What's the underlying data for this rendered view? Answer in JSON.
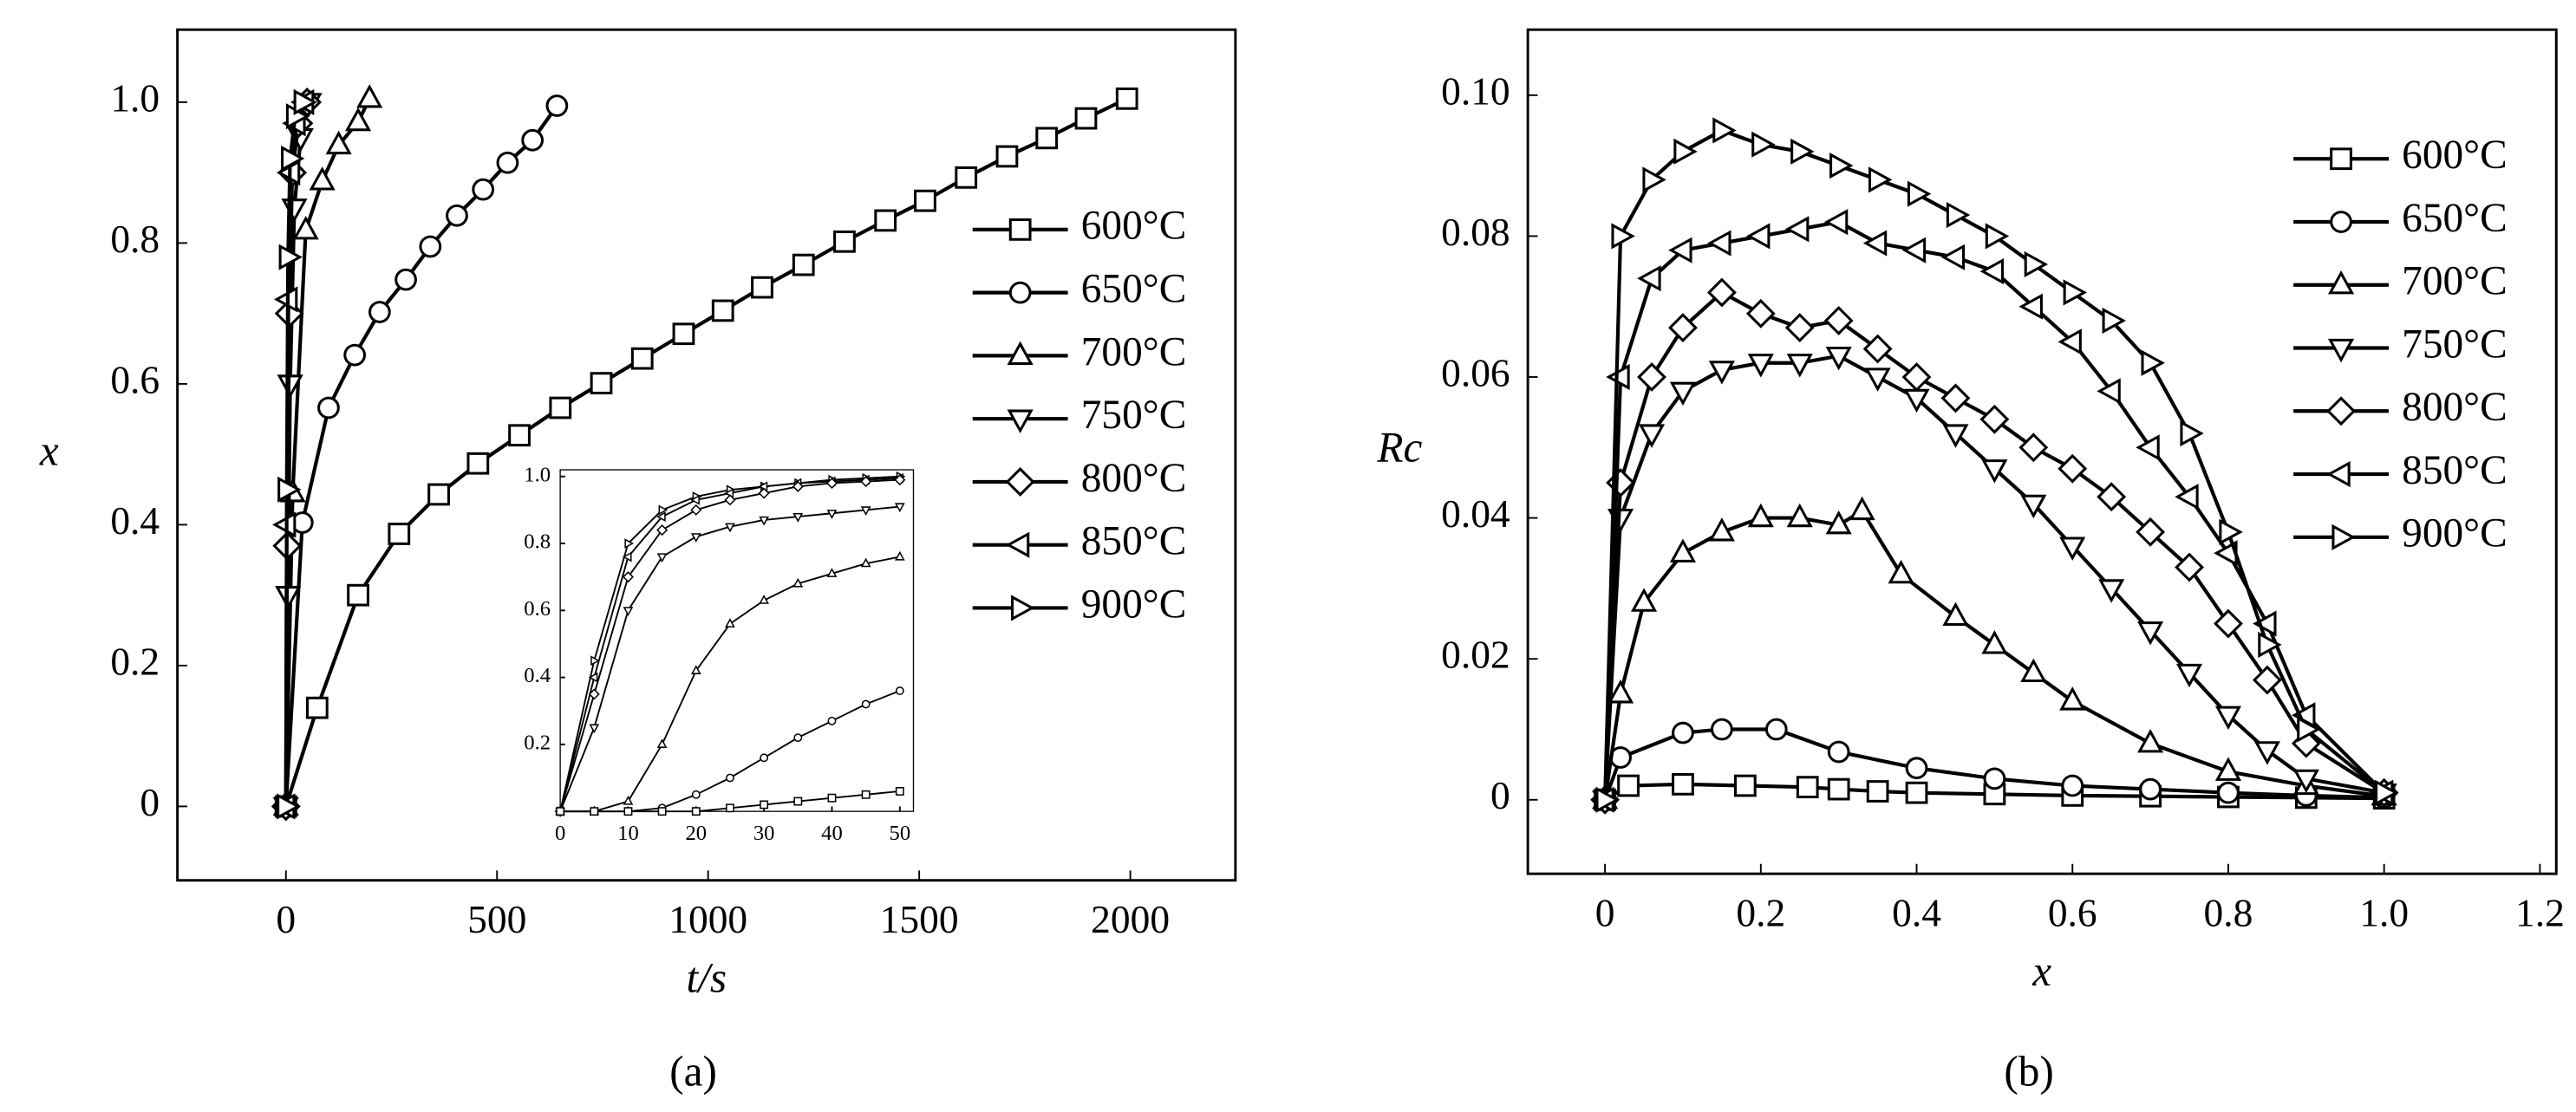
{
  "chart_data": [
    {
      "type": "line",
      "caption": "(a)",
      "xlabel": "t/s",
      "ylabel": "x",
      "color": "#000000",
      "legend": "center right",
      "xlim": [
        -257,
        2249
      ],
      "xticks": [
        0,
        500,
        1000,
        1500,
        2000
      ],
      "ylim": [
        -0.105,
        1.103
      ],
      "yticks": [
        0,
        0.2,
        0.4,
        0.6,
        0.8,
        {
          "value": 1,
          "label": "1.0"
        }
      ],
      "series": [
        {
          "name": "600°C",
          "marker": "square",
          "x": [
            0,
            74,
            171,
            268,
            362,
            455,
            553,
            650,
            747,
            844,
            942,
            1035,
            1128,
            1226,
            1323,
            1420,
            1514,
            1611,
            1708,
            1802,
            1895,
            1992
          ],
          "values": [
            0,
            0.14,
            0.3,
            0.387,
            0.443,
            0.487,
            0.527,
            0.566,
            0.601,
            0.636,
            0.671,
            0.704,
            0.737,
            0.769,
            0.802,
            0.832,
            0.86,
            0.893,
            0.923,
            0.949,
            0.977,
            1.005
          ]
        },
        {
          "name": "650°C",
          "marker": "circle",
          "x": [
            0,
            39,
            101,
            163,
            222,
            284,
            342,
            405,
            467,
            525,
            584,
            642
          ],
          "values": [
            0,
            0.403,
            0.566,
            0.641,
            0.702,
            0.748,
            0.795,
            0.839,
            0.876,
            0.914,
            0.946,
            0.995
          ]
        },
        {
          "name": "700°C",
          "marker": "triangle-up",
          "x": [
            0,
            16,
            47,
            86,
            125,
            171,
            198
          ],
          "values": [
            0,
            0.445,
            0.818,
            0.888,
            0.939,
            0.972,
            1.005
          ]
        },
        {
          "name": "750°C",
          "marker": "triangle-down",
          "x": [
            0,
            5,
            10,
            20,
            35,
            55
          ],
          "values": [
            0,
            0.3,
            0.6,
            0.85,
            0.95,
            1.0
          ]
        },
        {
          "name": "800°C",
          "marker": "diamond",
          "x": [
            0,
            3,
            8,
            15,
            30,
            50
          ],
          "values": [
            0,
            0.37,
            0.7,
            0.9,
            0.97,
            1.0
          ]
        },
        {
          "name": "850°C",
          "marker": "triangle-left",
          "x": [
            0,
            2,
            6,
            12,
            25,
            45
          ],
          "values": [
            0,
            0.4,
            0.72,
            0.9,
            0.97,
            1.0
          ]
        },
        {
          "name": "900°C",
          "marker": "triangle-right",
          "x": [
            0,
            2,
            5,
            10,
            22,
            40
          ],
          "values": [
            0,
            0.45,
            0.78,
            0.92,
            0.98,
            1.0
          ]
        }
      ]
    },
    {
      "type": "line",
      "color": "#000000",
      "xlim": [
        0,
        52
      ],
      "xticks": [
        0,
        10,
        20,
        30,
        40,
        50
      ],
      "ylim": [
        0,
        1.02
      ],
      "yticks": [
        0.2,
        0.4,
        0.6,
        0.8,
        {
          "value": 1,
          "label": "1.0"
        }
      ],
      "x": [
        0,
        5,
        10,
        15,
        20,
        25,
        30,
        35,
        40,
        45,
        50
      ],
      "series": [
        {
          "marker": "triangle-right",
          "values": [
            0,
            0.45,
            0.8,
            0.9,
            0.94,
            0.96,
            0.97,
            0.98,
            0.99,
            0.995,
            1.0
          ]
        },
        {
          "marker": "triangle-left",
          "values": [
            0,
            0.4,
            0.76,
            0.88,
            0.93,
            0.95,
            0.97,
            0.98,
            0.985,
            0.99,
            0.995
          ]
        },
        {
          "marker": "diamond",
          "values": [
            0,
            0.35,
            0.7,
            0.84,
            0.9,
            0.93,
            0.95,
            0.97,
            0.98,
            0.985,
            0.99
          ]
        },
        {
          "marker": "triangle-down",
          "values": [
            0,
            0.25,
            0.6,
            0.76,
            0.82,
            0.85,
            0.87,
            0.88,
            0.89,
            0.9,
            0.91
          ]
        },
        {
          "marker": "triangle-up",
          "values": [
            0,
            0,
            0.03,
            0.2,
            0.42,
            0.56,
            0.63,
            0.68,
            0.71,
            0.74,
            0.76
          ]
        },
        {
          "marker": "circle",
          "values": [
            0,
            0,
            0,
            0.01,
            0.05,
            0.1,
            0.16,
            0.22,
            0.27,
            0.32,
            0.36
          ]
        },
        {
          "marker": "square",
          "values": [
            0,
            0,
            0,
            0,
            0,
            0.01,
            0.02,
            0.03,
            0.04,
            0.05,
            0.06
          ]
        }
      ]
    },
    {
      "type": "line",
      "caption": "(b)",
      "xlabel": "x",
      "ylabel": "Rc",
      "color": "#000000",
      "legend": "upper right",
      "xlim": [
        -0.099,
        1.221
      ],
      "xticks": [
        0,
        0.2,
        0.4,
        0.6,
        0.8,
        {
          "value": 1,
          "label": "1.0"
        },
        1.2
      ],
      "ylim": [
        -0.0105,
        0.1093
      ],
      "yticks": [
        0,
        0.02,
        0.04,
        0.06,
        0.08,
        {
          "value": 0.1,
          "label": "0.10"
        }
      ],
      "series": [
        {
          "name": "600°C",
          "marker": "square",
          "x": [
            0,
            0.03,
            0.1,
            0.18,
            0.26,
            0.3,
            0.35,
            0.4,
            0.5,
            0.6,
            0.7,
            0.8,
            0.9,
            1.0
          ],
          "values": [
            0,
            0.002,
            0.0022,
            0.002,
            0.0018,
            0.0015,
            0.0012,
            0.001,
            0.0008,
            0.0006,
            0.0005,
            0.0004,
            0.0003,
            0.0002
          ]
        },
        {
          "name": "650°C",
          "marker": "circle",
          "x": [
            0,
            0.02,
            0.1,
            0.15,
            0.22,
            0.3,
            0.4,
            0.5,
            0.6,
            0.7,
            0.8,
            0.9,
            1.0
          ],
          "values": [
            0,
            0.006,
            0.0095,
            0.01,
            0.01,
            0.0068,
            0.0045,
            0.003,
            0.002,
            0.0015,
            0.001,
            0.0006,
            0.0003
          ]
        },
        {
          "name": "700°C",
          "marker": "triangle-up",
          "x": [
            0,
            0.02,
            0.05,
            0.1,
            0.15,
            0.2,
            0.25,
            0.3,
            0.33,
            0.38,
            0.45,
            0.5,
            0.55,
            0.6,
            0.7,
            0.8,
            0.9,
            1.0
          ],
          "values": [
            0,
            0.015,
            0.028,
            0.035,
            0.038,
            0.04,
            0.04,
            0.039,
            0.041,
            0.032,
            0.026,
            0.022,
            0.018,
            0.014,
            0.008,
            0.004,
            0.002,
            0.0005
          ]
        },
        {
          "name": "750°C",
          "marker": "triangle-down",
          "x": [
            0,
            0.02,
            0.06,
            0.1,
            0.15,
            0.2,
            0.25,
            0.3,
            0.35,
            0.4,
            0.45,
            0.5,
            0.55,
            0.6,
            0.65,
            0.7,
            0.75,
            0.8,
            0.85,
            0.9,
            1.0
          ],
          "values": [
            0,
            0.04,
            0.052,
            0.058,
            0.061,
            0.062,
            0.062,
            0.063,
            0.06,
            0.057,
            0.052,
            0.047,
            0.042,
            0.036,
            0.03,
            0.024,
            0.018,
            0.012,
            0.007,
            0.003,
            0.001
          ]
        },
        {
          "name": "800°C",
          "marker": "diamond",
          "x": [
            0,
            0.02,
            0.06,
            0.1,
            0.15,
            0.2,
            0.25,
            0.3,
            0.35,
            0.4,
            0.45,
            0.5,
            0.55,
            0.6,
            0.65,
            0.7,
            0.75,
            0.8,
            0.85,
            0.9,
            1.0
          ],
          "values": [
            0,
            0.045,
            0.06,
            0.067,
            0.072,
            0.069,
            0.067,
            0.068,
            0.064,
            0.06,
            0.057,
            0.054,
            0.05,
            0.047,
            0.043,
            0.038,
            0.033,
            0.025,
            0.017,
            0.008,
            0.001
          ]
        },
        {
          "name": "850°C",
          "marker": "triangle-left",
          "x": [
            0,
            0.02,
            0.06,
            0.1,
            0.15,
            0.2,
            0.25,
            0.3,
            0.35,
            0.4,
            0.45,
            0.5,
            0.55,
            0.6,
            0.65,
            0.7,
            0.75,
            0.8,
            0.85,
            0.9,
            1.0
          ],
          "values": [
            0,
            0.06,
            0.074,
            0.078,
            0.079,
            0.08,
            0.081,
            0.082,
            0.079,
            0.078,
            0.077,
            0.075,
            0.07,
            0.065,
            0.058,
            0.05,
            0.043,
            0.035,
            0.025,
            0.012,
            0.001
          ]
        },
        {
          "name": "900°C",
          "marker": "triangle-right",
          "x": [
            0,
            0.02,
            0.06,
            0.1,
            0.15,
            0.2,
            0.25,
            0.3,
            0.35,
            0.4,
            0.45,
            0.5,
            0.55,
            0.6,
            0.65,
            0.7,
            0.75,
            0.8,
            0.85,
            0.9,
            1.0
          ],
          "values": [
            0,
            0.08,
            0.088,
            0.092,
            0.095,
            0.093,
            0.092,
            0.09,
            0.088,
            0.086,
            0.083,
            0.08,
            0.076,
            0.072,
            0.068,
            0.062,
            0.052,
            0.038,
            0.022,
            0.01,
            0.001
          ]
        }
      ]
    }
  ]
}
